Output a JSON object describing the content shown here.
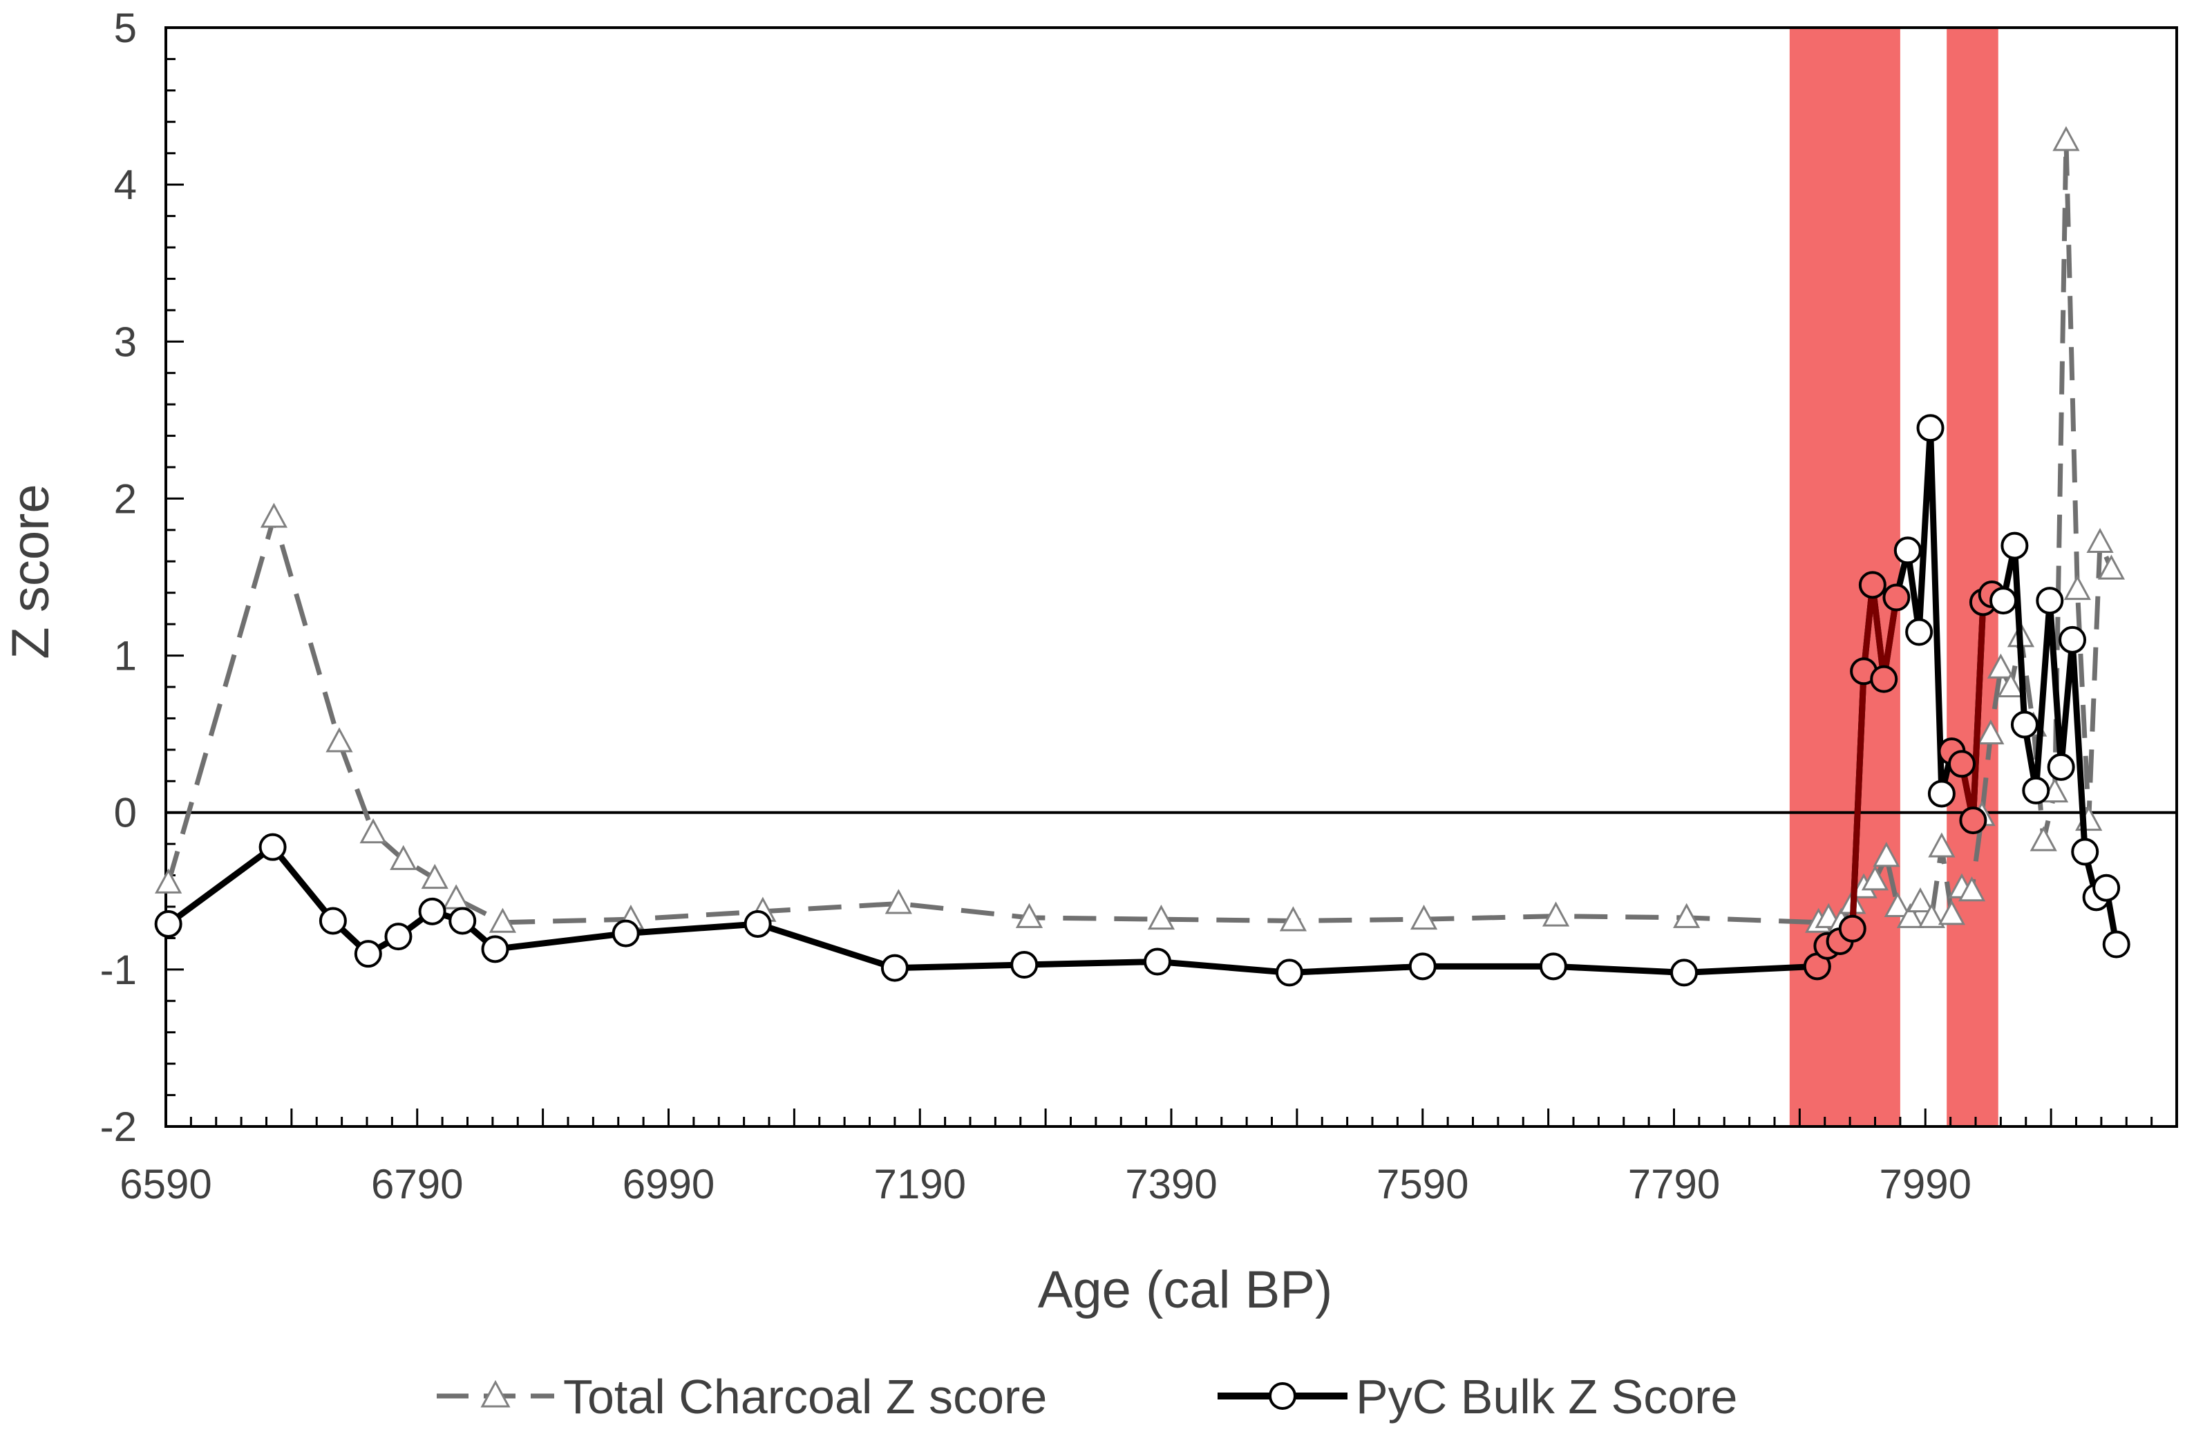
{
  "chart_data": {
    "type": "line",
    "title": "",
    "xlabel": "Age (cal BP)",
    "ylabel": "Z score",
    "xlim": [
      6590,
      8190
    ],
    "ylim": [
      -2,
      5
    ],
    "x_ticks": [
      6590,
      6790,
      6990,
      7190,
      7390,
      7590,
      7790,
      7990
    ],
    "y_ticks": [
      -2,
      -1,
      0,
      1,
      2,
      3,
      4,
      5
    ],
    "grid": false,
    "legend_position": "bottom",
    "highlight_bands": [
      {
        "x0": 7882,
        "x1": 7970,
        "color": "#f36b6b"
      },
      {
        "x0": 8007,
        "x1": 8048,
        "color": "#f36b6b"
      }
    ],
    "series": [
      {
        "name": "Total Charcoal Z score",
        "style": "dashed",
        "marker": "triangle",
        "color": "#707070",
        "points": [
          [
            6592,
            -0.45
          ],
          [
            6676,
            1.88
          ],
          [
            6728,
            0.45
          ],
          [
            6755,
            -0.13
          ],
          [
            6779,
            -0.3
          ],
          [
            6804,
            -0.42
          ],
          [
            6821,
            -0.55
          ],
          [
            6858,
            -0.7
          ],
          [
            6960,
            -0.68
          ],
          [
            7065,
            -0.63
          ],
          [
            7173,
            -0.58
          ],
          [
            7277,
            -0.67
          ],
          [
            7382,
            -0.68
          ],
          [
            7487,
            -0.69
          ],
          [
            7591,
            -0.68
          ],
          [
            7696,
            -0.66
          ],
          [
            7800,
            -0.67
          ],
          [
            7905,
            -0.7
          ],
          [
            7913,
            -0.67
          ],
          [
            7923,
            -0.7
          ],
          [
            7932,
            -0.58
          ],
          [
            7941,
            -0.48
          ],
          [
            7950,
            -0.43
          ],
          [
            7959,
            -0.28
          ],
          [
            7968,
            -0.6
          ],
          [
            7978,
            -0.67
          ],
          [
            7986,
            -0.57
          ],
          [
            7995,
            -0.67
          ],
          [
            8003,
            -0.22
          ],
          [
            8011,
            -0.65
          ],
          [
            8019,
            -0.48
          ],
          [
            8027,
            -0.5
          ],
          [
            8035,
            -0.02
          ],
          [
            8042,
            0.5
          ],
          [
            8050,
            0.92
          ],
          [
            8058,
            0.8
          ],
          [
            8066,
            1.12
          ],
          [
            8076,
            0.55
          ],
          [
            8084,
            -0.18
          ],
          [
            8093,
            0.13
          ],
          [
            8102,
            4.28
          ],
          [
            8111,
            1.42
          ],
          [
            8120,
            -0.05
          ],
          [
            8129,
            1.72
          ],
          [
            8138,
            1.55
          ]
        ]
      },
      {
        "name": "PyC Bulk Z Score",
        "style": "solid",
        "marker": "circle",
        "color": "#000000",
        "points": [
          [
            6592,
            -0.71
          ],
          [
            6675,
            -0.22
          ],
          [
            6723,
            -0.69
          ],
          [
            6751,
            -0.9
          ],
          [
            6775,
            -0.79
          ],
          [
            6802,
            -0.63
          ],
          [
            6826,
            -0.69
          ],
          [
            6852,
            -0.87
          ],
          [
            6956,
            -0.77
          ],
          [
            7061,
            -0.71
          ],
          [
            7170,
            -0.99
          ],
          [
            7273,
            -0.97
          ],
          [
            7379,
            -0.95
          ],
          [
            7484,
            -1.02
          ],
          [
            7590,
            -0.98
          ],
          [
            7694,
            -0.98
          ],
          [
            7798,
            -1.02
          ],
          [
            7904,
            -0.98
          ],
          [
            7912,
            -0.85
          ],
          [
            7922,
            -0.82
          ],
          [
            7932,
            -0.74
          ],
          [
            7941,
            0.9
          ],
          [
            7948,
            1.45
          ],
          [
            7957,
            0.85
          ],
          [
            7967,
            1.37
          ],
          [
            7976,
            1.67
          ],
          [
            7985,
            1.15
          ],
          [
            7994,
            2.45
          ],
          [
            8003,
            0.12
          ],
          [
            8011,
            0.39
          ],
          [
            8019,
            0.31
          ],
          [
            8028,
            -0.05
          ],
          [
            8036,
            1.34
          ],
          [
            8043,
            1.39
          ],
          [
            8052,
            1.35
          ],
          [
            8061,
            1.7
          ],
          [
            8069,
            0.56
          ],
          [
            8078,
            0.14
          ],
          [
            8089,
            1.35
          ],
          [
            8098,
            0.29
          ],
          [
            8107,
            1.1
          ],
          [
            8117,
            -0.25
          ],
          [
            8126,
            -0.54
          ],
          [
            8134,
            -0.48
          ],
          [
            8142,
            -0.84
          ]
        ]
      }
    ]
  }
}
